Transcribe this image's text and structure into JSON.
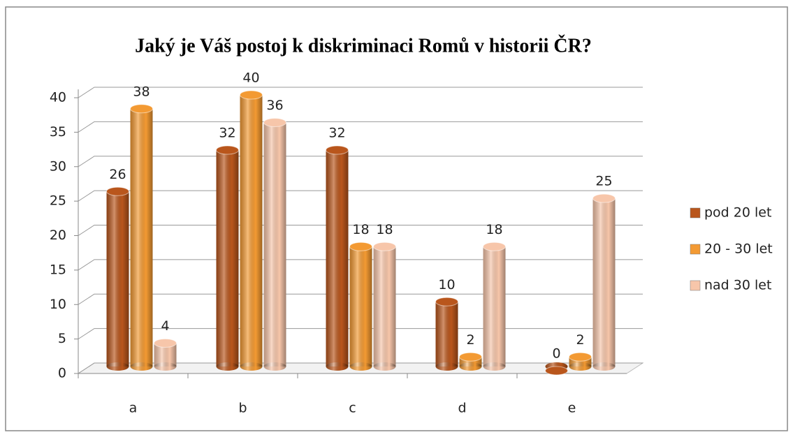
{
  "chart_data": {
    "type": "bar",
    "title": "Jaký je Váš postoj k diskriminaci Romů v historii ČR?",
    "categories": [
      "a",
      "b",
      "c",
      "d",
      "e"
    ],
    "series": [
      {
        "name": "pod 20 let",
        "color": "#b9561c",
        "values": [
          26,
          32,
          32,
          10,
          0
        ]
      },
      {
        "name": "20 - 30 let",
        "color": "#f39a33",
        "values": [
          38,
          40,
          18,
          2,
          2
        ]
      },
      {
        "name": "nad 30 let",
        "color": "#f7c6aa",
        "values": [
          4,
          36,
          18,
          18,
          25
        ]
      }
    ],
    "ylim": [
      0,
      40
    ],
    "yticks": [
      0,
      5,
      10,
      15,
      20,
      25,
      30,
      35,
      40
    ],
    "grid": true,
    "legend": "right"
  }
}
